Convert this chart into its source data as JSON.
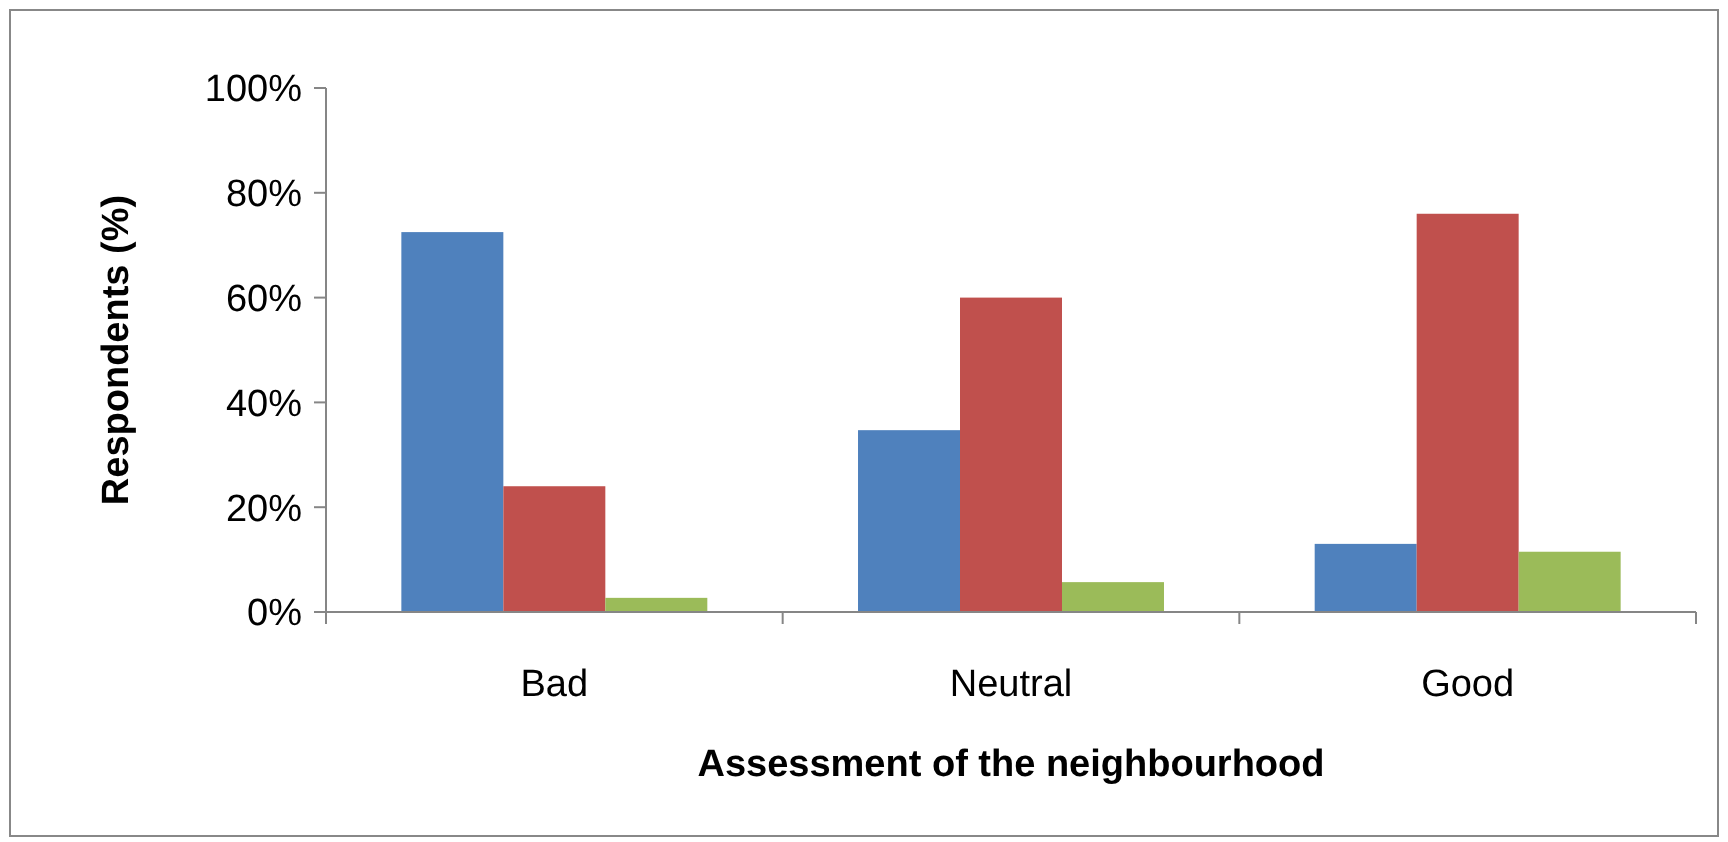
{
  "chart_data": {
    "type": "bar",
    "xlabel": "Assessment of the neighbourhood",
    "ylabel": "Respondents (%)",
    "categories": [
      "Bad",
      "Neutral",
      "Good"
    ],
    "series": [
      {
        "color": "#4f81bd",
        "values": [
          72.5,
          34.7,
          13
        ]
      },
      {
        "color": "#c0504d",
        "values": [
          24,
          60,
          76
        ]
      },
      {
        "color": "#9bbb59",
        "values": [
          2.7,
          5.7,
          11.5
        ]
      }
    ],
    "ylim": [
      0,
      100
    ],
    "yticks": [
      {
        "value": 0,
        "label": "0%"
      },
      {
        "value": 20,
        "label": "20%"
      },
      {
        "value": 40,
        "label": "40%"
      },
      {
        "value": 60,
        "label": "60%"
      },
      {
        "value": 80,
        "label": "80%"
      },
      {
        "value": 100,
        "label": "100%"
      }
    ],
    "grid": false
  }
}
